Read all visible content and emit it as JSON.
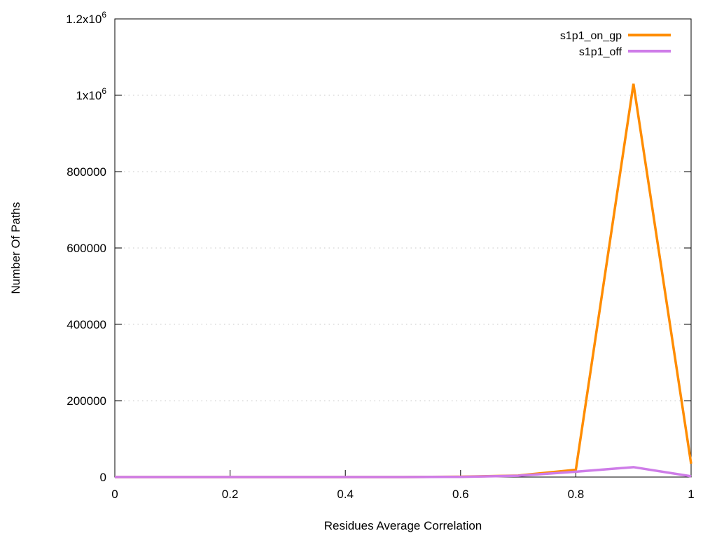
{
  "chart_data": {
    "type": "line",
    "title": "",
    "xlabel": "Residues Average Correlation",
    "ylabel": "Number Of Paths",
    "xlim": [
      0,
      1
    ],
    "ylim": [
      0,
      1200000
    ],
    "xtick_values": [
      0,
      0.2,
      0.4,
      0.6,
      0.8,
      1
    ],
    "xtick_labels": [
      "0",
      "0.2",
      "0.4",
      "0.6",
      "0.8",
      "1"
    ],
    "ytick_values": [
      0,
      200000,
      400000,
      600000,
      800000,
      1000000,
      1200000
    ],
    "ytick_labels": [
      "0",
      "200000",
      "400000",
      "600000",
      "800000",
      "1x10^6",
      "1.2x10^6"
    ],
    "grid": "horizontal-dotted",
    "grid_color": "#c8c8c8",
    "legend_position": "top-right",
    "x": [
      0,
      0.1,
      0.2,
      0.3,
      0.4,
      0.5,
      0.6,
      0.7,
      0.8,
      0.9,
      1.0
    ],
    "series": [
      {
        "name": "s1p1_on_gp",
        "color": "#ff8c00",
        "values": [
          0,
          0,
          0,
          0,
          0,
          0,
          1000,
          4000,
          19000,
          1030000,
          35000
        ]
      },
      {
        "name": "s1p1_off",
        "color": "#ce7ce8",
        "values": [
          0,
          0,
          0,
          0,
          0,
          0,
          500,
          3500,
          14000,
          26000,
          2000
        ]
      }
    ],
    "axis_color": "#000000"
  }
}
